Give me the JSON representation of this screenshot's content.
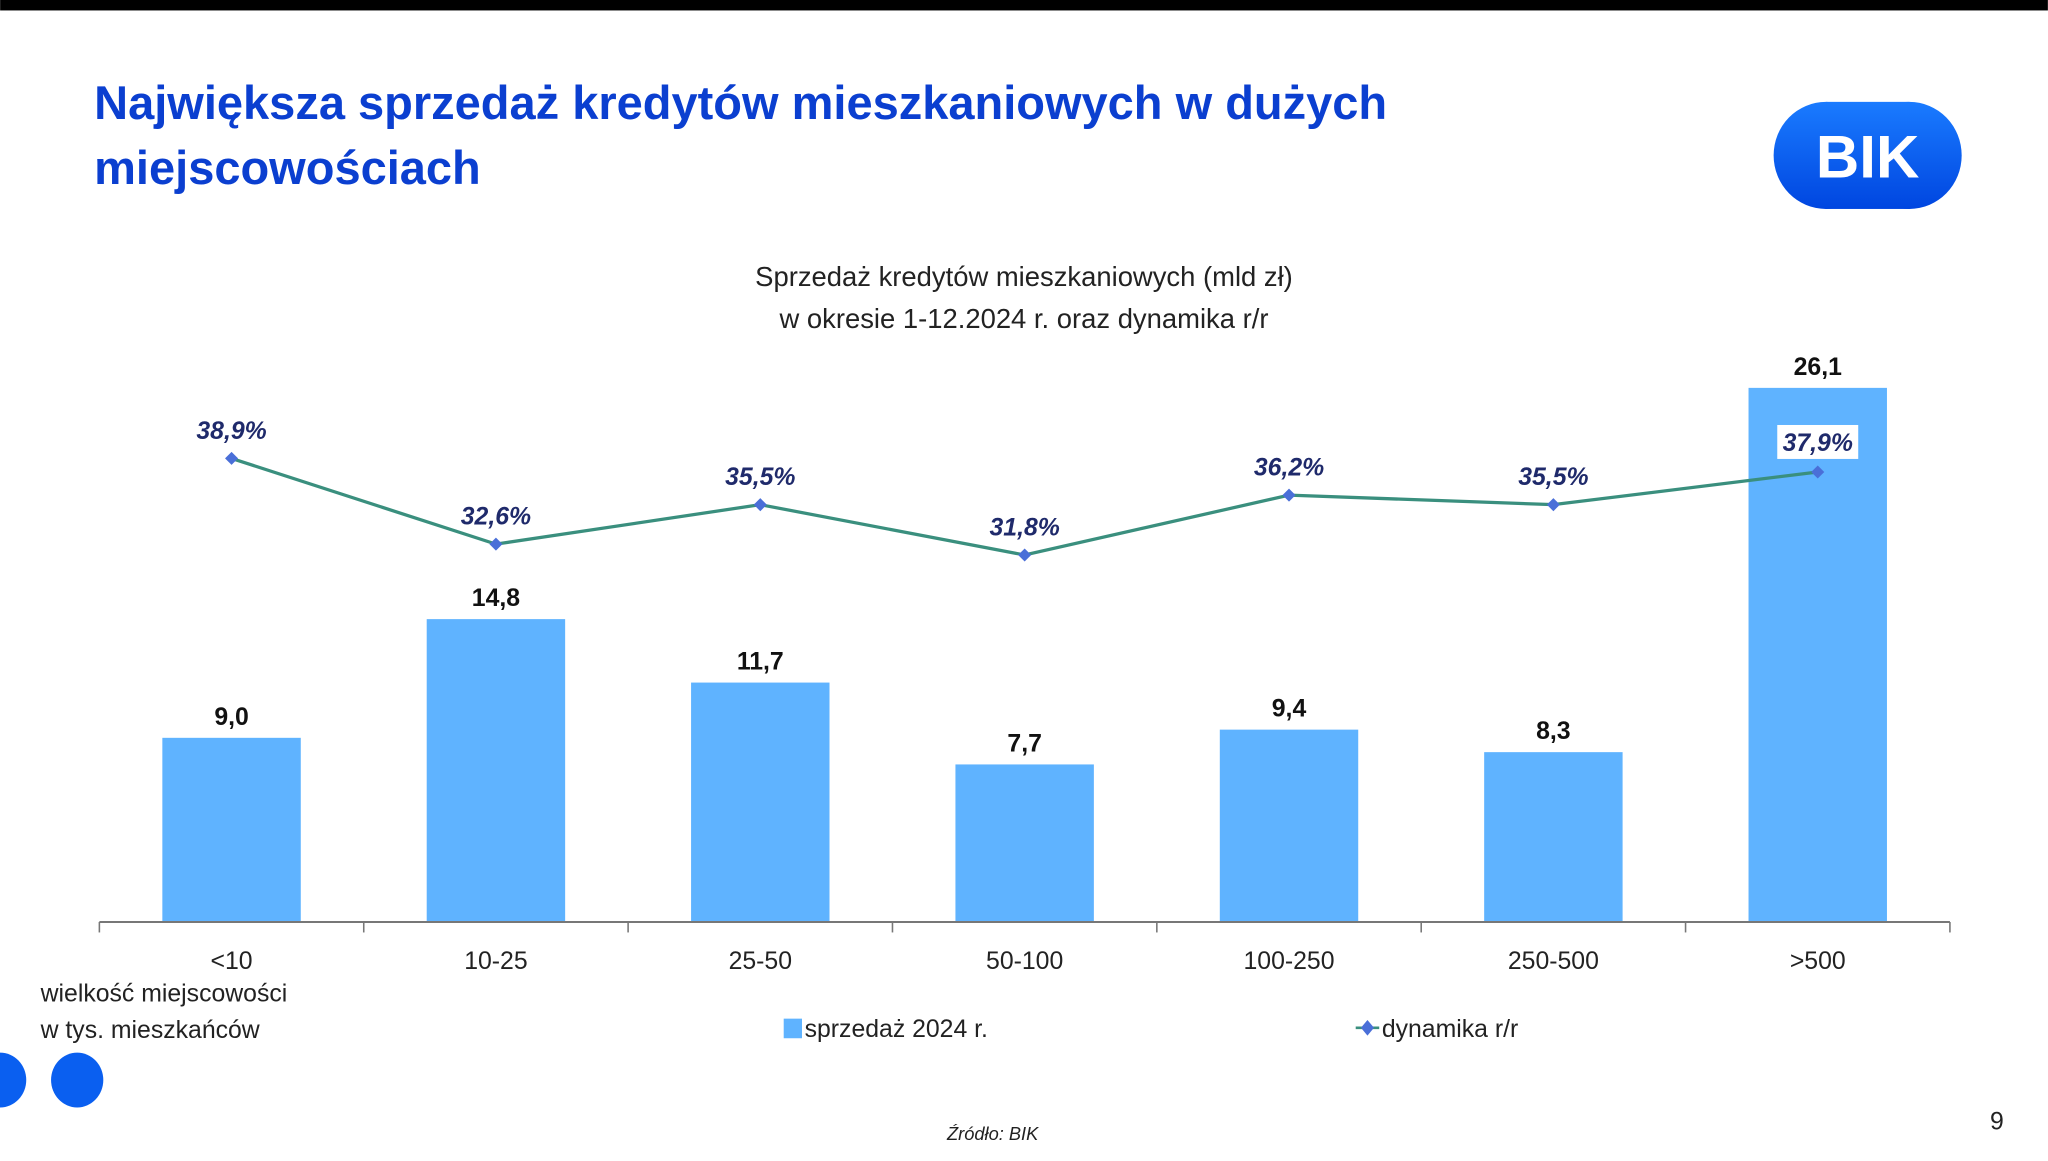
{
  "slide": {
    "title_line1": "Największa sprzedaż kredytów mieszkaniowych w dużych",
    "title_line2": "miejscowościach",
    "logo": "BIK",
    "source": "Źródło: BIK",
    "page_number": "9"
  },
  "colors": {
    "title": "#0b3fd0",
    "bar": "#5fb3ff",
    "line": "#3a8f7e",
    "marker": "#4a6fd8",
    "logo": "#0a5ff0"
  },
  "chart_data": {
    "type": "bar+line",
    "title_line1": "Sprzedaż kredytów mieszkaniowych (mld zł)",
    "title_line2": "w okresie 1-12.2024 r. oraz dynamika r/r",
    "xlabel_line1": "wielkość miejscowości",
    "xlabel_line2": "w tys. mieszkańców",
    "categories": [
      "<10",
      "10-25",
      "25-50",
      "50-100",
      "100-250",
      "250-500",
      ">500"
    ],
    "series": [
      {
        "name": "sprzedaż 2024 r.",
        "type": "bar",
        "values": [
          9.0,
          14.8,
          11.7,
          7.7,
          9.4,
          8.3,
          26.1
        ],
        "labels": [
          "9,0",
          "14,8",
          "11,7",
          "7,7",
          "9,4",
          "8,3",
          "26,1"
        ]
      },
      {
        "name": "dynamika r/r",
        "type": "line",
        "values": [
          38.9,
          32.6,
          35.5,
          31.8,
          36.2,
          35.5,
          37.9
        ],
        "labels": [
          "38,9%",
          "32,6%",
          "35,5%",
          "31,8%",
          "36,2%",
          "35,5%",
          "37,9%"
        ]
      }
    ],
    "legend_position": "bottom",
    "grid": false
  }
}
